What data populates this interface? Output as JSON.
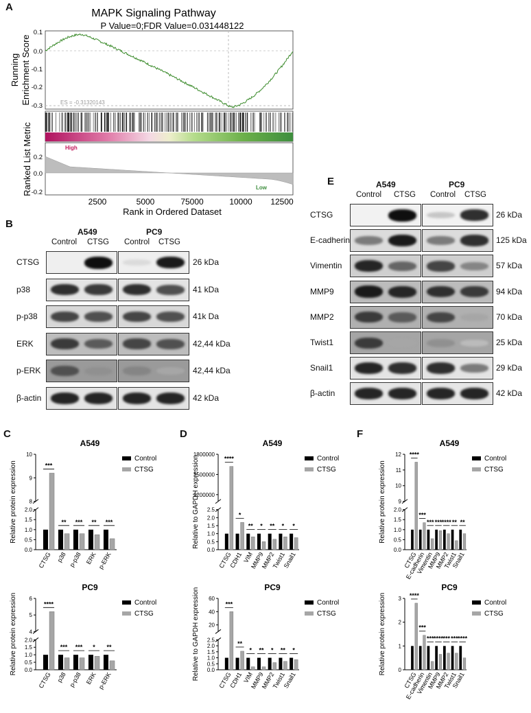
{
  "panels": {
    "A": "A",
    "B": "B",
    "C": "C",
    "D": "D",
    "E": "E",
    "F": "F"
  },
  "gsea": {
    "title": "MAPK Signaling Pathway",
    "subtitle": "P Value=0;FDR Value=0.031448122",
    "es_label": "ES = -0.31320143",
    "ylabel_top": [
      "Running",
      "Enrichment Score"
    ],
    "ylabel_bottom": "Ranked List Metric",
    "high_label": "High",
    "low_label": "Low",
    "xlabel": "Rank in Ordered Dataset",
    "yticks_top": [
      "0.1",
      "0.0",
      "-0.1",
      "-0.2",
      "-0.3"
    ],
    "yticks_bottom": [
      "0.2",
      "0.0",
      "-0.2"
    ],
    "xticks": [
      "2500",
      "5000",
      "75000",
      "10000",
      "12500"
    ]
  },
  "blotB": {
    "groups": [
      "A549",
      "PC9"
    ],
    "cols": [
      "Control",
      "CTSG",
      "Control",
      "CTSG"
    ],
    "rows": [
      {
        "label": "CTSG",
        "kda": "26 kDa"
      },
      {
        "label": "p38",
        "kda": "41 kDa"
      },
      {
        "label": "p-p38",
        "kda": "41k Da"
      },
      {
        "label": "ERK",
        "kda": "42,44 kDa"
      },
      {
        "label": "p-ERK",
        "kda": "42,44 kDa"
      },
      {
        "label": "β-actin",
        "kda": "42 kDa"
      }
    ]
  },
  "blotE": {
    "groups": [
      "A549",
      "PC9"
    ],
    "cols": [
      "Control",
      "CTSG",
      "Control",
      "CTSG"
    ],
    "rows": [
      {
        "label": "CTSG",
        "kda": "26 kDa"
      },
      {
        "label": "E-cadherin",
        "kda": "125 kDa"
      },
      {
        "label": "Vimentin",
        "kda": "57 kDa"
      },
      {
        "label": "MMP9",
        "kda": "94 kDa"
      },
      {
        "label": "MMP2",
        "kda": "70 kDa"
      },
      {
        "label": "Twist1",
        "kda": "25 kDa"
      },
      {
        "label": "Snail1",
        "kda": "29 kDa"
      },
      {
        "label": "β-actin",
        "kda": "42 kDa"
      }
    ]
  },
  "legend": {
    "control": "Control",
    "ctsg": "CTSG"
  },
  "colors": {
    "control": "#000000",
    "ctsg": "#a6a6a6",
    "es_line": "#3a8a2a",
    "high": "#c2185b",
    "low": "#3e8e3e"
  },
  "chart_data": [
    {
      "id": "C-A549",
      "type": "bar",
      "title": "A549",
      "ylabel": "Relative protein expression",
      "categories": [
        "CTSG",
        "p38",
        "p-p38",
        "ERK",
        "p-ERK"
      ],
      "series": [
        {
          "name": "Control",
          "values": [
            1.0,
            1.0,
            1.0,
            1.0,
            1.0
          ]
        },
        {
          "name": "CTSG",
          "values": [
            9.2,
            0.8,
            0.8,
            0.75,
            0.55
          ]
        }
      ],
      "sig": [
        "***",
        "**",
        "***",
        "**",
        "***"
      ],
      "yticks_low": [
        "0.0",
        "0.5",
        "1.0",
        "1.5",
        "2.0"
      ],
      "yticks_high": [
        "8",
        "9",
        "10"
      ],
      "break_low": 2.0,
      "break_high": [
        8,
        10
      ]
    },
    {
      "id": "C-PC9",
      "type": "bar",
      "title": "PC9",
      "ylabel": "Relative protein expression",
      "categories": [
        "CTSG",
        "p38",
        "p-p38",
        "ERK",
        "p-ERK"
      ],
      "series": [
        {
          "name": "Control",
          "values": [
            1.0,
            1.0,
            1.0,
            1.0,
            1.0
          ]
        },
        {
          "name": "CTSG",
          "values": [
            5.2,
            0.8,
            0.8,
            0.9,
            0.6
          ]
        }
      ],
      "sig": [
        "****",
        "***",
        "***",
        "*",
        "**"
      ],
      "yticks_low": [
        "0.0",
        "0.5",
        "1.0",
        "1.5",
        "2.0"
      ],
      "yticks_high": [
        "4",
        "5",
        "6"
      ],
      "break_low": 2.0,
      "break_high": [
        4,
        6
      ]
    },
    {
      "id": "D-A549",
      "type": "bar",
      "title": "A549",
      "ylabel": "Relative to GAPDH expression",
      "categories": [
        "CTSG",
        "CDH1",
        "VIM",
        "MMP9",
        "MMP2",
        "Twist1",
        "Snail1"
      ],
      "series": [
        {
          "name": "Control",
          "values": [
            1.0,
            1.0,
            1.0,
            1.0,
            1.0,
            1.0,
            1.0
          ]
        },
        {
          "name": "CTSG",
          "values": [
            1620000,
            1.7,
            0.8,
            0.5,
            0.65,
            0.8,
            0.75
          ]
        }
      ],
      "sig": [
        "****",
        "*",
        "**",
        "*",
        "**",
        "*",
        "*"
      ],
      "yticks_low": [
        "0.0",
        "0.5",
        "1.0",
        "1.5",
        "2.0",
        "2.5"
      ],
      "yticks_high": [
        "1200000",
        "1500000",
        "1800000"
      ],
      "break_low": 2.5,
      "break_high": [
        1100000,
        1800000
      ]
    },
    {
      "id": "D-PC9",
      "type": "bar",
      "title": "PC9",
      "ylabel": "Relative to GAPDH expression",
      "categories": [
        "CTSG",
        "CDH1",
        "VIM",
        "MMP9",
        "MMP2",
        "Twist1",
        "Snail1"
      ],
      "series": [
        {
          "name": "Control",
          "values": [
            1.0,
            1.0,
            1.0,
            1.0,
            1.0,
            1.0,
            1.0
          ]
        },
        {
          "name": "CTSG",
          "values": [
            40,
            1.55,
            0.25,
            0.25,
            0.6,
            0.7,
            0.85
          ]
        }
      ],
      "sig": [
        "***",
        "**",
        "*",
        "**",
        "*",
        "**",
        "*"
      ],
      "yticks_low": [
        "0.0",
        "0.5",
        "1.0",
        "1.5",
        "2.0",
        "2.5"
      ],
      "yticks_high": [
        "20",
        "40",
        "60"
      ],
      "break_low": 2.5,
      "break_high": [
        10,
        60
      ]
    },
    {
      "id": "F-A549",
      "type": "bar",
      "title": "A549",
      "ylabel": "Relative protein expression",
      "categories": [
        "CTSG",
        "E-cadherin",
        "Vimentin",
        "MMP9",
        "MMP2",
        "Twist1",
        "Snail1"
      ],
      "series": [
        {
          "name": "Control",
          "values": [
            1.0,
            1.0,
            1.0,
            1.0,
            1.0,
            1.0,
            1.0
          ]
        },
        {
          "name": "CTSG",
          "values": [
            11.5,
            1.35,
            0.55,
            0.95,
            0.8,
            0.45,
            0.8
          ]
        }
      ],
      "sig": [
        "****",
        "***",
        "***",
        "***",
        "****",
        "**",
        "**"
      ],
      "yticks_low": [
        "0.0",
        "0.5",
        "1.0",
        "1.5",
        "2.0"
      ],
      "yticks_high": [
        "9",
        "10",
        "11",
        "12"
      ],
      "break_low": 2.0,
      "break_high": [
        9,
        12
      ]
    },
    {
      "id": "F-PC9",
      "type": "bar",
      "title": "PC9",
      "ylabel": "Relative protein expression",
      "categories": [
        "CTSG",
        "E-cadherin",
        "Vimentin",
        "MMP9",
        "MMP2",
        "Twist1",
        "Snail1"
      ],
      "series": [
        {
          "name": "Control",
          "values": [
            1.0,
            1.0,
            1.0,
            1.0,
            1.0,
            1.0,
            1.0
          ]
        },
        {
          "name": "CTSG",
          "values": [
            2.8,
            1.45,
            0.35,
            0.65,
            0.7,
            0.7,
            0.5
          ]
        }
      ],
      "sig": [
        "****",
        "***",
        "***",
        "****",
        "***",
        "***",
        "****"
      ],
      "yticks": [
        "0",
        "1",
        "2",
        "3"
      ],
      "ylim": [
        0,
        3
      ]
    }
  ]
}
